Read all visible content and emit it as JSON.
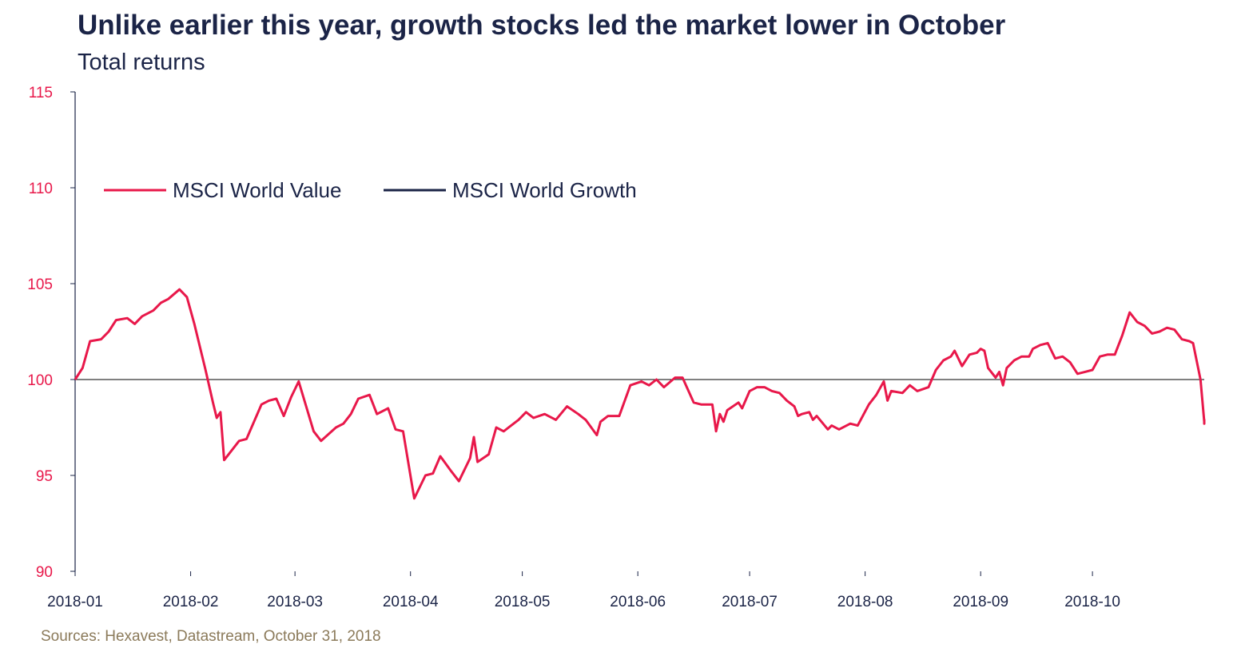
{
  "title": "Unlike earlier this year, growth stocks led the market lower in October",
  "subtitle": "Total returns",
  "source": "Sources: Hexavest, Datastream, October 31, 2018",
  "colors": {
    "value": "#e8184a",
    "growth": "#1b2447",
    "ytick": "#e8184a",
    "axis": "#1b2447"
  },
  "chart_data": {
    "type": "line",
    "ylim": [
      90,
      115
    ],
    "yticks": [
      90,
      95,
      100,
      105,
      110,
      115
    ],
    "reference_line": 100,
    "legend_position": "upper-left",
    "xlim": [
      "2018-01-01",
      "2018-10-31"
    ],
    "x_tick_labels": [
      "2018-01",
      "2018-02",
      "2018-03",
      "2018-04",
      "2018-05",
      "2018-06",
      "2018-07",
      "2018-08",
      "2018-09",
      "2018-10"
    ],
    "x_tick_dates": [
      "2018-01-01",
      "2018-02-01",
      "2018-03-01",
      "2018-04-01",
      "2018-05-01",
      "2018-06-01",
      "2018-07-01",
      "2018-08-01",
      "2018-09-01",
      "2018-10-01"
    ],
    "series": [
      {
        "name": "MSCI World Value",
        "color": "#e8184a",
        "points": [
          [
            "2018-01-01",
            100.0
          ],
          [
            "2018-01-03",
            100.6
          ],
          [
            "2018-01-05",
            102.0
          ],
          [
            "2018-01-08",
            102.1
          ],
          [
            "2018-01-10",
            102.5
          ],
          [
            "2018-01-12",
            103.1
          ],
          [
            "2018-01-15",
            103.2
          ],
          [
            "2018-01-17",
            102.9
          ],
          [
            "2018-01-19",
            103.3
          ],
          [
            "2018-01-22",
            103.6
          ],
          [
            "2018-01-24",
            104.0
          ],
          [
            "2018-01-26",
            104.2
          ],
          [
            "2018-01-29",
            104.7
          ],
          [
            "2018-01-31",
            104.3
          ],
          [
            "2018-02-02",
            102.9
          ],
          [
            "2018-02-05",
            100.5
          ],
          [
            "2018-02-07",
            98.8
          ],
          [
            "2018-02-08",
            98.0
          ],
          [
            "2018-02-09",
            98.3
          ],
          [
            "2018-02-10",
            95.8
          ],
          [
            "2018-02-14",
            96.8
          ],
          [
            "2018-02-16",
            96.9
          ],
          [
            "2018-02-20",
            98.7
          ],
          [
            "2018-02-22",
            98.9
          ],
          [
            "2018-02-24",
            99.0
          ],
          [
            "2018-02-26",
            98.1
          ],
          [
            "2018-02-28",
            99.1
          ],
          [
            "2018-03-02",
            99.9
          ],
          [
            "2018-03-06",
            97.3
          ],
          [
            "2018-03-08",
            96.8
          ],
          [
            "2018-03-12",
            97.5
          ],
          [
            "2018-03-14",
            97.7
          ],
          [
            "2018-03-16",
            98.2
          ],
          [
            "2018-03-18",
            99.0
          ],
          [
            "2018-03-21",
            99.2
          ],
          [
            "2018-03-23",
            98.2
          ],
          [
            "2018-03-26",
            98.5
          ],
          [
            "2018-03-28",
            97.4
          ],
          [
            "2018-03-30",
            97.3
          ],
          [
            "2018-04-02",
            93.8
          ],
          [
            "2018-04-05",
            95.0
          ],
          [
            "2018-04-07",
            95.1
          ],
          [
            "2018-04-09",
            96.0
          ],
          [
            "2018-04-12",
            95.2
          ],
          [
            "2018-04-14",
            94.7
          ],
          [
            "2018-04-17",
            95.9
          ],
          [
            "2018-04-18",
            97.0
          ],
          [
            "2018-04-19",
            95.7
          ],
          [
            "2018-04-22",
            96.1
          ],
          [
            "2018-04-24",
            97.5
          ],
          [
            "2018-04-26",
            97.3
          ],
          [
            "2018-04-30",
            97.9
          ],
          [
            "2018-05-02",
            98.3
          ],
          [
            "2018-05-04",
            98.0
          ],
          [
            "2018-05-07",
            98.2
          ],
          [
            "2018-05-10",
            97.9
          ],
          [
            "2018-05-13",
            98.6
          ],
          [
            "2018-05-16",
            98.2
          ],
          [
            "2018-05-18",
            97.9
          ],
          [
            "2018-05-21",
            97.1
          ],
          [
            "2018-05-22",
            97.8
          ],
          [
            "2018-05-24",
            98.1
          ],
          [
            "2018-05-27",
            98.1
          ],
          [
            "2018-05-30",
            99.7
          ],
          [
            "2018-06-02",
            99.9
          ],
          [
            "2018-06-04",
            99.7
          ],
          [
            "2018-06-06",
            100.0
          ],
          [
            "2018-06-08",
            99.6
          ],
          [
            "2018-06-11",
            100.1
          ],
          [
            "2018-06-13",
            100.1
          ],
          [
            "2018-06-16",
            98.8
          ],
          [
            "2018-06-18",
            98.7
          ],
          [
            "2018-06-21",
            98.7
          ],
          [
            "2018-06-22",
            97.3
          ],
          [
            "2018-06-23",
            98.2
          ],
          [
            "2018-06-24",
            97.8
          ],
          [
            "2018-06-25",
            98.4
          ],
          [
            "2018-06-28",
            98.8
          ],
          [
            "2018-06-29",
            98.5
          ],
          [
            "2018-07-01",
            99.4
          ],
          [
            "2018-07-03",
            99.6
          ],
          [
            "2018-07-05",
            99.6
          ],
          [
            "2018-07-07",
            99.4
          ],
          [
            "2018-07-09",
            99.3
          ],
          [
            "2018-07-11",
            98.9
          ],
          [
            "2018-07-13",
            98.6
          ],
          [
            "2018-07-14",
            98.1
          ],
          [
            "2018-07-15",
            98.2
          ],
          [
            "2018-07-17",
            98.3
          ],
          [
            "2018-07-18",
            97.9
          ],
          [
            "2018-07-19",
            98.1
          ],
          [
            "2018-07-22",
            97.4
          ],
          [
            "2018-07-23",
            97.6
          ],
          [
            "2018-07-25",
            97.4
          ],
          [
            "2018-07-28",
            97.7
          ],
          [
            "2018-07-30",
            97.6
          ],
          [
            "2018-08-02",
            98.7
          ],
          [
            "2018-08-04",
            99.2
          ],
          [
            "2018-08-06",
            99.9
          ],
          [
            "2018-08-07",
            98.9
          ],
          [
            "2018-08-08",
            99.4
          ],
          [
            "2018-08-11",
            99.3
          ],
          [
            "2018-08-13",
            99.7
          ],
          [
            "2018-08-15",
            99.4
          ],
          [
            "2018-08-18",
            99.6
          ],
          [
            "2018-08-20",
            100.5
          ],
          [
            "2018-08-22",
            101.0
          ],
          [
            "2018-08-24",
            101.2
          ],
          [
            "2018-08-25",
            101.5
          ],
          [
            "2018-08-27",
            100.7
          ],
          [
            "2018-08-29",
            101.3
          ],
          [
            "2018-08-31",
            101.4
          ],
          [
            "2018-09-01",
            101.6
          ],
          [
            "2018-09-02",
            101.5
          ],
          [
            "2018-09-03",
            100.6
          ],
          [
            "2018-09-05",
            100.1
          ],
          [
            "2018-09-06",
            100.4
          ],
          [
            "2018-09-07",
            99.7
          ],
          [
            "2018-09-08",
            100.6
          ],
          [
            "2018-09-10",
            101.0
          ],
          [
            "2018-09-12",
            101.2
          ],
          [
            "2018-09-14",
            101.2
          ],
          [
            "2018-09-15",
            101.6
          ],
          [
            "2018-09-17",
            101.8
          ],
          [
            "2018-09-19",
            101.9
          ],
          [
            "2018-09-21",
            101.1
          ],
          [
            "2018-09-23",
            101.2
          ],
          [
            "2018-09-25",
            100.9
          ],
          [
            "2018-09-27",
            100.3
          ],
          [
            "2018-09-29",
            100.4
          ],
          [
            "2018-10-01",
            100.5
          ],
          [
            "2018-10-03",
            101.2
          ],
          [
            "2018-10-05",
            101.3
          ],
          [
            "2018-10-07",
            101.3
          ],
          [
            "2018-10-09",
            102.3
          ],
          [
            "2018-10-11",
            103.5
          ],
          [
            "2018-10-13",
            103.0
          ],
          [
            "2018-10-15",
            102.8
          ],
          [
            "2018-10-17",
            102.4
          ],
          [
            "2018-10-19",
            102.5
          ],
          [
            "2018-10-21",
            102.7
          ],
          [
            "2018-10-23",
            102.6
          ],
          [
            "2018-10-25",
            102.1
          ],
          [
            "2018-10-27",
            102.0
          ],
          [
            "2018-10-28",
            101.9
          ],
          [
            "2018-10-30",
            100.0
          ],
          [
            "2018-10-31",
            97.8
          ],
          [
            "2018-10-31",
            97.9
          ],
          [
            "2018-10-31",
            97.8
          ],
          [
            "2018-10-31",
            97.7
          ],
          [
            "2018-10-31",
            97.8
          ]
        ]
      },
      {
        "name": "MSCI World Growth",
        "color": "#1b2447",
        "points": []
      }
    ]
  }
}
